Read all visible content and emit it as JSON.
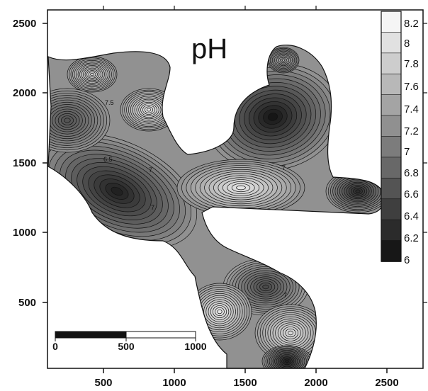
{
  "map": {
    "title": "pH",
    "x_ticks": [
      "500",
      "1000",
      "1500",
      "2000",
      "2500"
    ],
    "y_ticks": [
      "2500",
      "2000",
      "1500",
      "1000",
      "500"
    ],
    "contour_labels": [
      "7.5",
      "6.5",
      "7",
      "7",
      "7",
      "7"
    ],
    "colors": {
      "low": "#0d0d0d",
      "high": "#ffffff",
      "line": "#111111"
    }
  },
  "legend": {
    "labels": [
      "8.2",
      "8",
      "7.8",
      "7.6",
      "7.4",
      "7.2",
      "7",
      "6.8",
      "6.6",
      "6.4",
      "6.2",
      "6"
    ],
    "min": 6,
    "max": 8.2
  },
  "scale_bar": {
    "labels": [
      "0",
      "500",
      "1000"
    ]
  }
}
